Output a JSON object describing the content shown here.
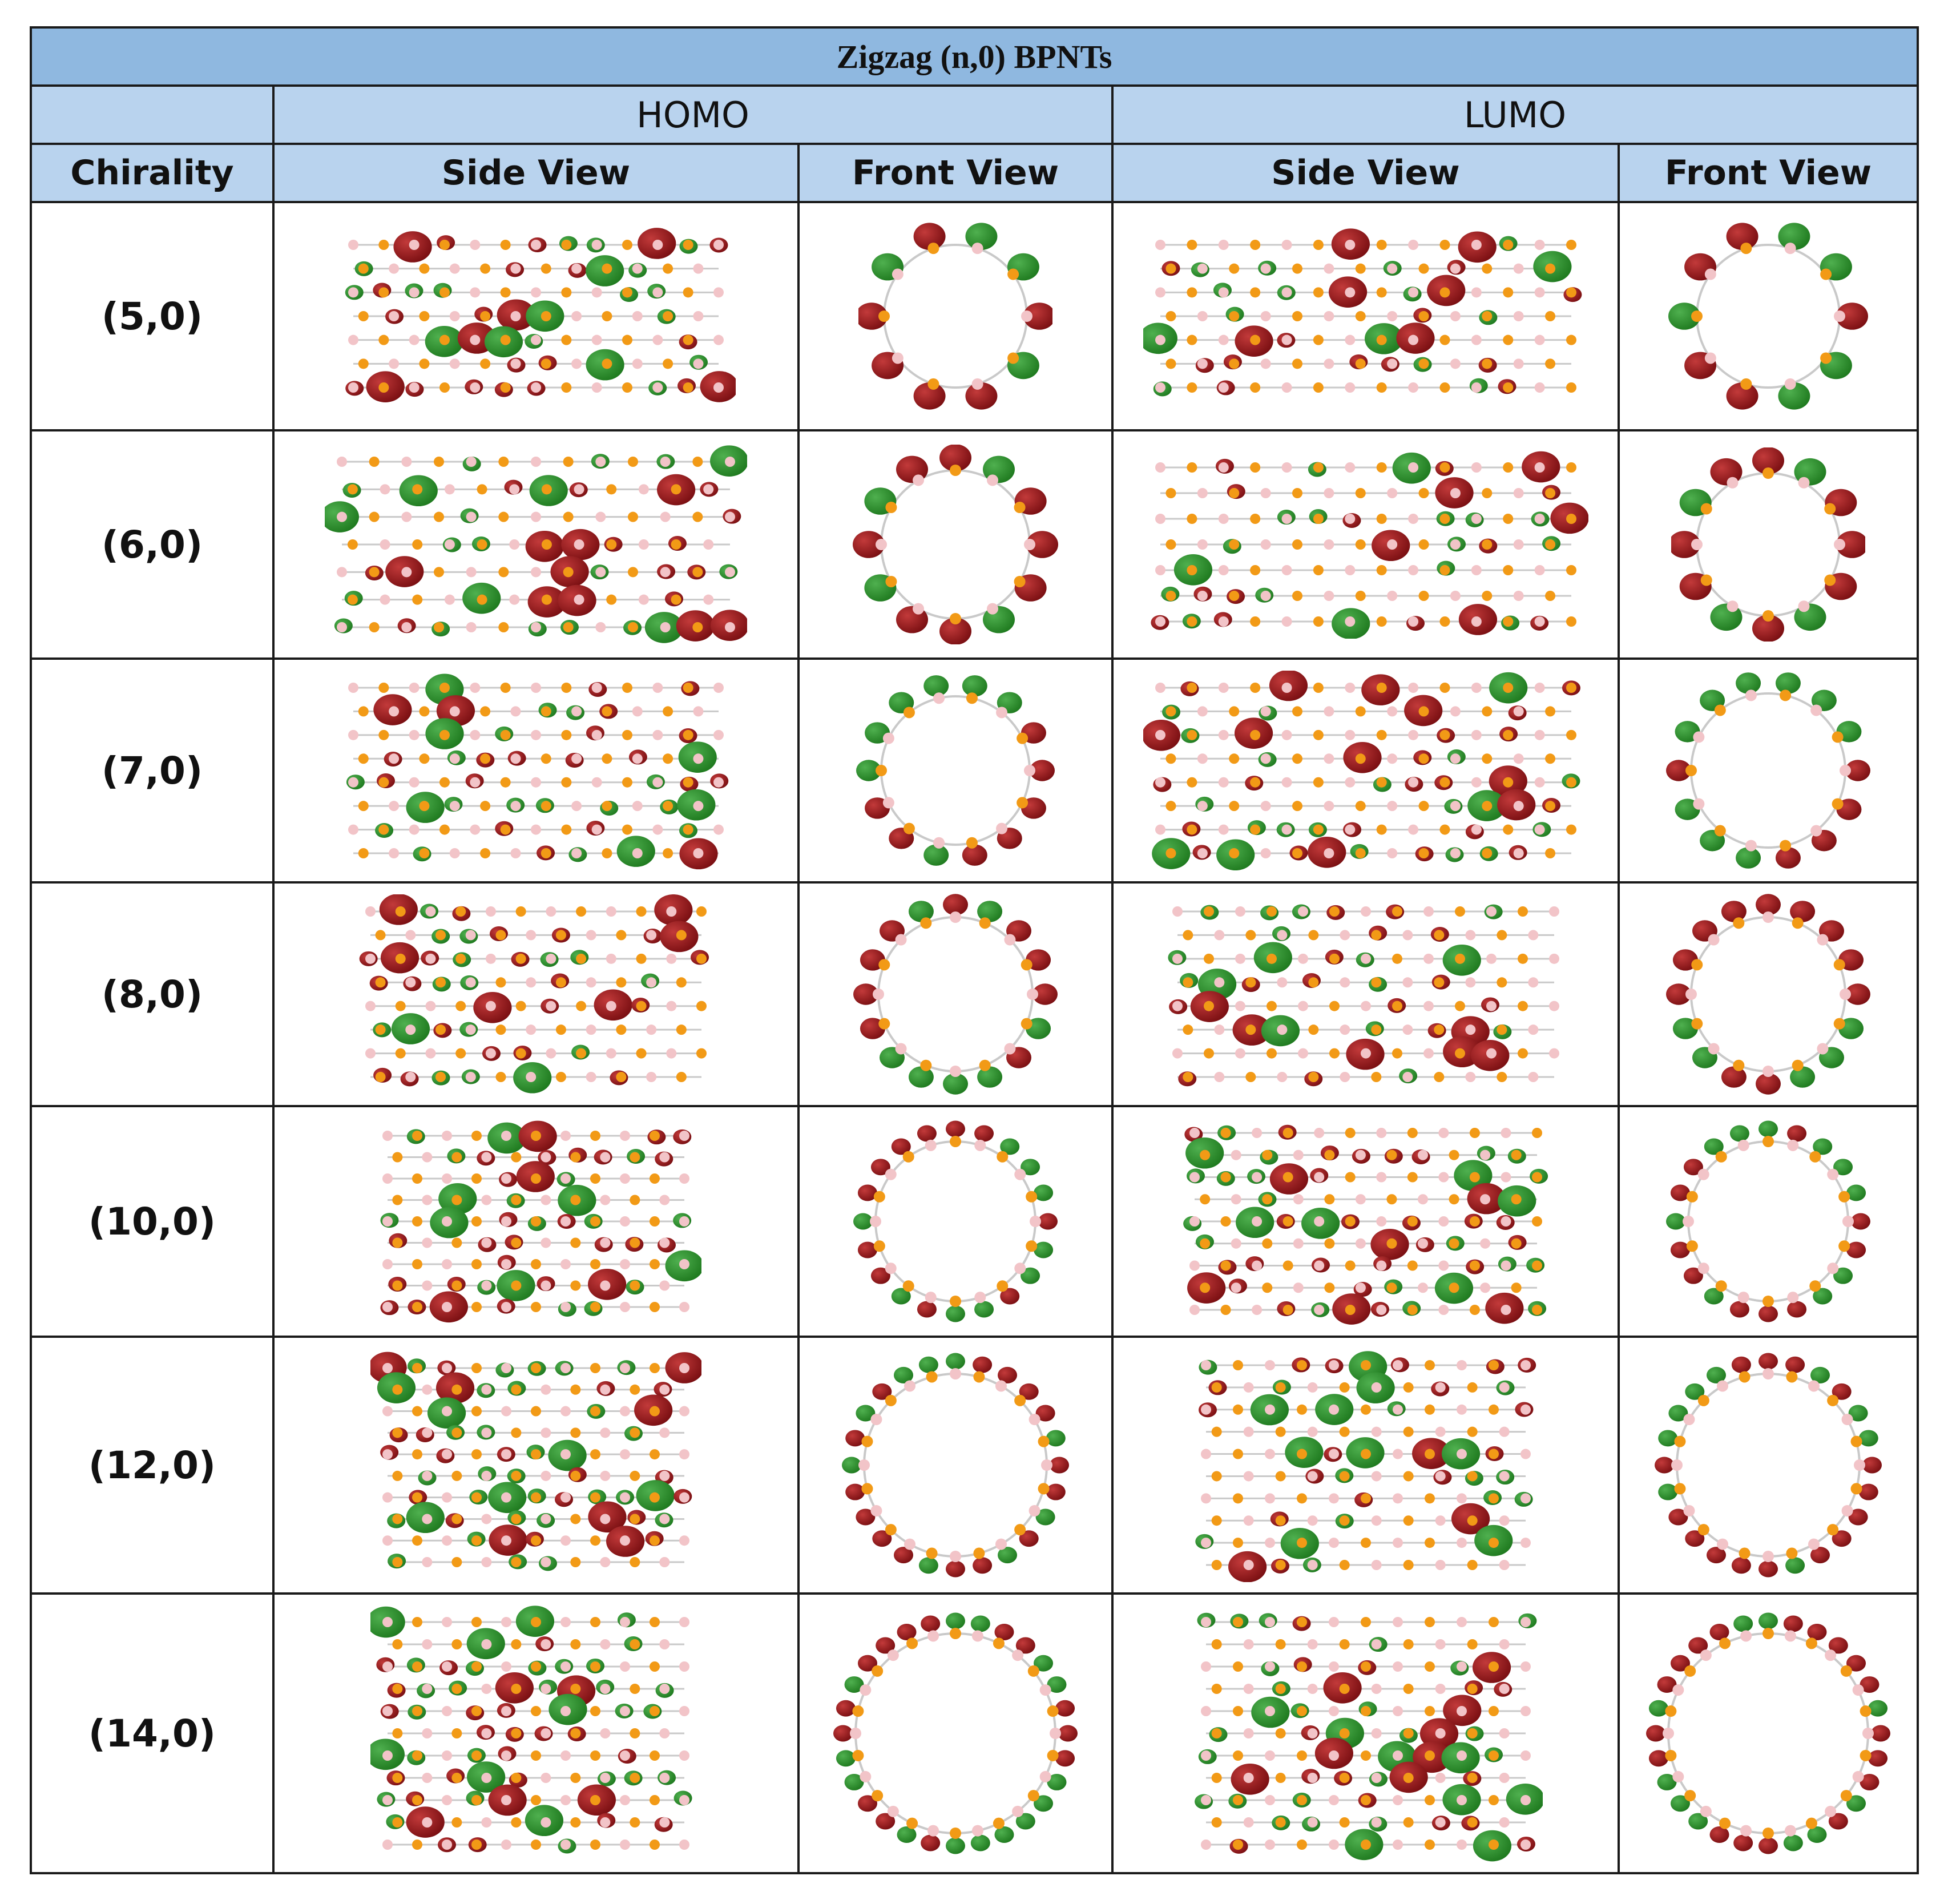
{
  "table": {
    "title": "Zigzag (n,0) BPNTs",
    "groups": [
      "HOMO",
      "LUMO"
    ],
    "headers": {
      "chirality": "Chirality",
      "homo_side": "Side View",
      "homo_front": "Front View",
      "lumo_side": "Side View",
      "lumo_front": "Front View"
    },
    "rows": [
      {
        "chirality": "(5,0)",
        "n": 5
      },
      {
        "chirality": "(6,0)",
        "n": 6
      },
      {
        "chirality": "(7,0)",
        "n": 7
      },
      {
        "chirality": "(8,0)",
        "n": 8
      },
      {
        "chirality": "(10,0)",
        "n": 10
      },
      {
        "chirality": "(12,0)",
        "n": 12
      },
      {
        "chirality": "(14,0)",
        "n": 14
      }
    ]
  },
  "colors": {
    "header_dark": "#8fb8e0",
    "header_light": "#b9d3ee",
    "lobe_red": "#7a0f12",
    "lobe_green": "#1f7a1f",
    "atom_orange": "#f29a16",
    "atom_pink": "#f2c4c8",
    "bond_gray": "#c9c9c9"
  }
}
